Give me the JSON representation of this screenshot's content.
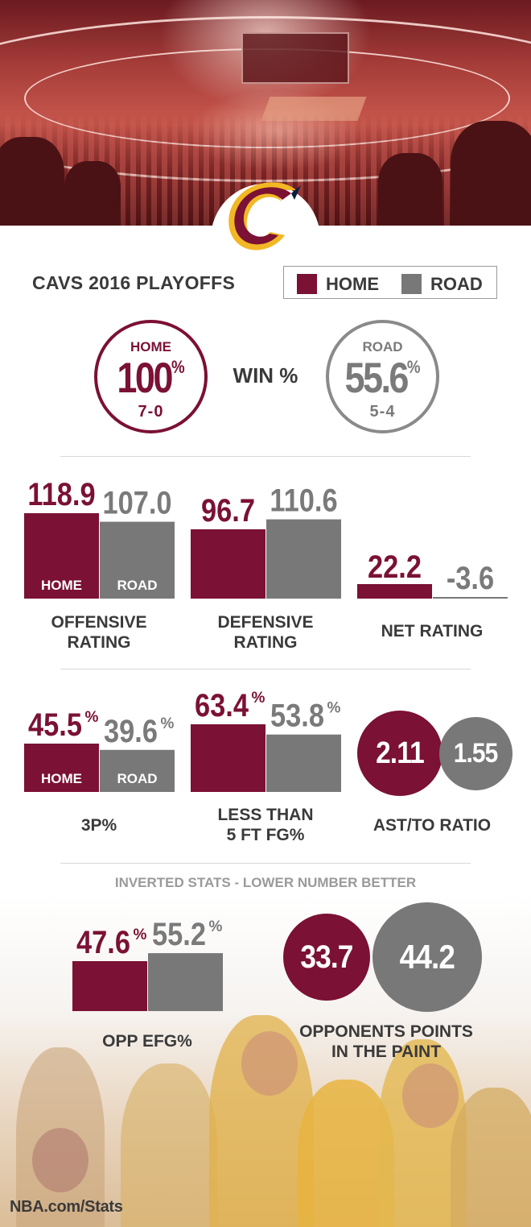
{
  "header": {
    "title": "CAVS 2016 PLAYOFFS",
    "legend": [
      {
        "label": "HOME",
        "color": "#7b1134"
      },
      {
        "label": "ROAD",
        "color": "#787878"
      }
    ]
  },
  "win_pct": {
    "label": "WIN %",
    "home": {
      "label": "HOME",
      "value": "100",
      "unit": "%",
      "record": "7-0"
    },
    "road": {
      "label": "ROAD",
      "value": "55.6",
      "unit": "%",
      "record": "5-4"
    }
  },
  "captions": {
    "off": [
      "OFFENSIVE",
      "RATING"
    ],
    "def": [
      "DEFENSIVE",
      "RATING"
    ],
    "net": "NET RATING",
    "three": "3P%",
    "lt5": [
      "LESS THAN",
      "5 FT FG%"
    ],
    "ast": "AST/TO RATIO",
    "efg": "OPP EFG%",
    "paint": [
      "OPPONENTS POINTS",
      "IN THE PAINT"
    ]
  },
  "inverted_note": "INVERTED STATS - LOWER NUMBER BETTER",
  "footer": "NBA.com/Stats",
  "chart_data": [
    {
      "type": "bar",
      "id": "off",
      "categories": [
        "HOME",
        "ROAD"
      ],
      "values": [
        118.9,
        107.0
      ],
      "labels": [
        "118.9",
        "107.0"
      ],
      "bar_labels": [
        "HOME",
        "ROAD"
      ]
    },
    {
      "type": "bar",
      "id": "def",
      "categories": [
        "HOME",
        "ROAD"
      ],
      "values": [
        96.7,
        110.6
      ],
      "labels": [
        "96.7",
        "110.6"
      ]
    },
    {
      "type": "bar",
      "id": "net",
      "categories": [
        "HOME",
        "ROAD"
      ],
      "values": [
        22.2,
        -3.6
      ],
      "labels": [
        "22.2",
        "-3.6"
      ]
    },
    {
      "type": "bar",
      "id": "three",
      "categories": [
        "HOME",
        "ROAD"
      ],
      "values": [
        45.5,
        39.6
      ],
      "labels": [
        "45.5",
        "39.6"
      ],
      "unit": "%",
      "bar_labels": [
        "HOME",
        "ROAD"
      ]
    },
    {
      "type": "bar",
      "id": "lt5",
      "categories": [
        "HOME",
        "ROAD"
      ],
      "values": [
        63.4,
        53.8
      ],
      "labels": [
        "63.4",
        "53.8"
      ],
      "unit": "%"
    },
    {
      "type": "bubble",
      "id": "ast",
      "categories": [
        "HOME",
        "ROAD"
      ],
      "values": [
        2.11,
        1.55
      ],
      "labels": [
        "2.11",
        "1.55"
      ]
    },
    {
      "type": "bar",
      "id": "efg",
      "categories": [
        "HOME",
        "ROAD"
      ],
      "values": [
        47.6,
        55.2
      ],
      "labels": [
        "47.6",
        "55.2"
      ],
      "unit": "%"
    },
    {
      "type": "bubble",
      "id": "paint",
      "categories": [
        "HOME",
        "ROAD"
      ],
      "values": [
        33.7,
        44.2
      ],
      "labels": [
        "33.7",
        "44.2"
      ]
    }
  ]
}
